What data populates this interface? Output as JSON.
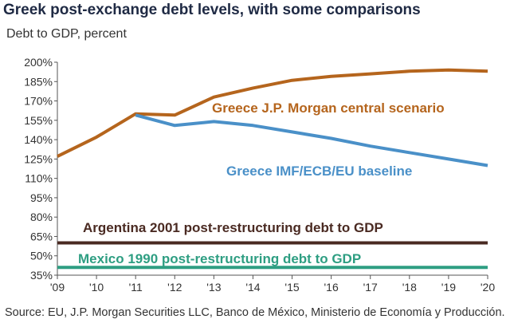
{
  "chart_data": {
    "type": "line",
    "title": "Greek post-exchange debt levels, with some comparisons",
    "subtitle": "Debt to GDP, percent",
    "x": [
      "'09",
      "'10",
      "'11",
      "'12",
      "'13",
      "'14",
      "'15",
      "'16",
      "'17",
      "'18",
      "'19",
      "'20"
    ],
    "xlim": [
      2009,
      2020
    ],
    "ylim": [
      35,
      200
    ],
    "yticks": [
      35,
      50,
      65,
      80,
      95,
      110,
      125,
      140,
      155,
      170,
      185,
      200
    ],
    "ytick_suffix": "%",
    "grid": false,
    "series": [
      {
        "name": "Greece J.P. Morgan central scenario",
        "color": "#b5651d",
        "x": [
          2009,
          2010,
          2011,
          2012,
          2013,
          2014,
          2015,
          2016,
          2017,
          2018,
          2019,
          2020
        ],
        "values": [
          127,
          142,
          160,
          159,
          173,
          180,
          186,
          189,
          191,
          193,
          194,
          193
        ]
      },
      {
        "name": "Greece IMF/ECB/EU baseline",
        "color": "#4a90c8",
        "x": [
          2011,
          2012,
          2013,
          2014,
          2015,
          2016,
          2017,
          2018,
          2019,
          2020
        ],
        "values": [
          159,
          151,
          154,
          151,
          146,
          141,
          135,
          130,
          125,
          120
        ]
      },
      {
        "name": "Argentina 2001 post-restructuring debt to GDP",
        "color": "#4a2a22",
        "x": [
          2009,
          2020
        ],
        "values": [
          60,
          60
        ]
      },
      {
        "name": "Mexico 1990 post-restructuring debt to GDP",
        "color": "#2e9e82",
        "x": [
          2009,
          2020
        ],
        "values": [
          41,
          41
        ]
      }
    ],
    "source": "Source: EU, J.P. Morgan Securities LLC, Banco de México, Ministerio de Economía y Producción."
  }
}
